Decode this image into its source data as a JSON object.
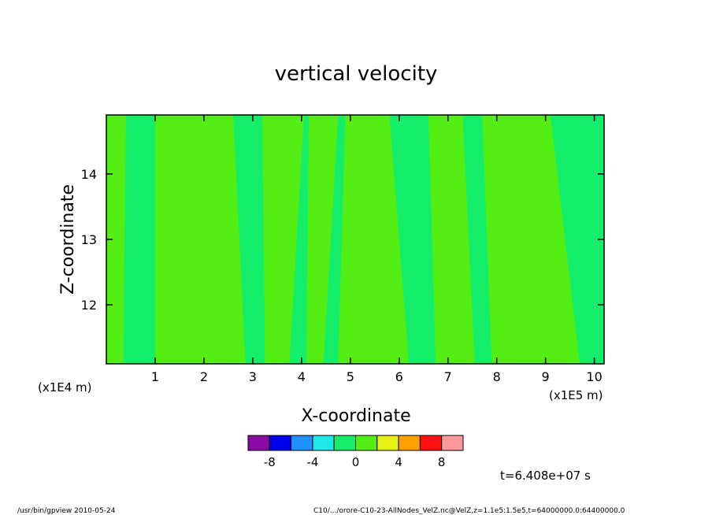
{
  "chart_data": {
    "type": "heatmap",
    "title": "vertical velocity",
    "xlabel": "X-coordinate",
    "ylabel": "Z-coordinate",
    "x_unit_left": "(x1E4 m)",
    "x_unit_right": "(x1E5 m)",
    "x_range": [
      0,
      10.2
    ],
    "y_range": [
      11.1,
      14.9
    ],
    "x_ticks": [
      "1",
      "2",
      "3",
      "4",
      "5",
      "6",
      "7",
      "8",
      "9",
      "10"
    ],
    "y_ticks": [
      "12",
      "13",
      "14"
    ],
    "colorbar": {
      "levels": [
        -10,
        -8,
        -6,
        -4,
        -2,
        0,
        2,
        4,
        6,
        8,
        10
      ],
      "colors": [
        "#8a0aa6",
        "#0000ee",
        "#1e90ff",
        "#1fe8e8",
        "#14ee6a",
        "#55ee14",
        "#e6f014",
        "#ffa000",
        "#ff1010",
        "#ff9a9a"
      ],
      "tick_labels": [
        "-8",
        "-4",
        "0",
        "4",
        "8"
      ]
    },
    "field_values": {
      "background_band_value": 1,
      "near_zero_band_value": -1
    },
    "near_zero_bands": [
      {
        "x_bottom": [
          0.35,
          1.0
        ],
        "x_top": [
          0.4,
          1.0
        ]
      },
      {
        "x_bottom": [
          2.85,
          3.25
        ],
        "x_top": [
          2.6,
          3.2
        ]
      },
      {
        "x_bottom": [
          3.75,
          4.1
        ],
        "x_top": [
          4.05,
          4.15
        ]
      },
      {
        "x_bottom": [
          4.45,
          4.75
        ],
        "x_top": [
          4.75,
          4.9
        ]
      },
      {
        "x_bottom": [
          6.2,
          6.75
        ],
        "x_top": [
          5.8,
          6.6
        ]
      },
      {
        "x_bottom": [
          7.55,
          7.9
        ],
        "x_top": [
          7.3,
          7.7
        ]
      },
      {
        "x_bottom": [
          9.7,
          10.2
        ],
        "x_top": [
          9.1,
          10.2
        ]
      }
    ],
    "time_label": "t=6.408e+07 s"
  },
  "footer": {
    "left": "/usr/bin/gpview  2010-05-24",
    "right": "C10/.../orore-C10-23-AllNodes_VelZ.nc@VelZ,z=1.1e5:1.5e5,t=64000000.0:64400000.0"
  }
}
